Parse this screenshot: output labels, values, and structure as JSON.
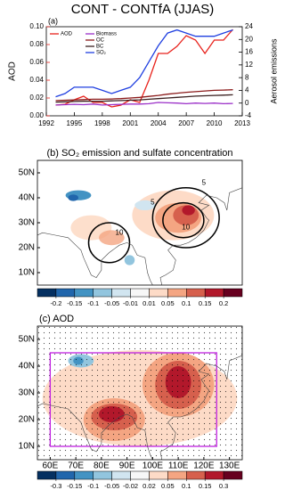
{
  "chart_data": [
    {
      "type": "line",
      "title": "CONT - CONTfA (JJAS)",
      "subtitle": "(a)",
      "ylabel": "AOD",
      "y2label": "Aerosol emissions",
      "x": [
        1993,
        1994,
        1995,
        1996,
        1997,
        1998,
        1999,
        2000,
        2001,
        2002,
        2003,
        2004,
        2005,
        2006,
        2007,
        2008,
        2009,
        2010,
        2011,
        2012
      ],
      "xlim": [
        1992,
        2013
      ],
      "xticks": [
        1992,
        1995,
        1998,
        2001,
        2004,
        2007,
        2010,
        2013
      ],
      "ylim": [
        0,
        0.1
      ],
      "yticks": [
        {
          "value": 0,
          "label": "0.00"
        },
        {
          "value": 0.02,
          "label": "0.02"
        },
        {
          "value": 0.04,
          "label": "0.04"
        },
        {
          "value": 0.06,
          "label": "0.06"
        },
        {
          "value": 0.08,
          "label": "0.08"
        },
        {
          "value": 0.1,
          "label": "0.10"
        }
      ],
      "y2lim": [
        -4,
        24
      ],
      "y2ticks": [
        -4,
        0,
        4,
        8,
        12,
        16,
        20,
        24
      ],
      "series": [
        {
          "name": "AOD",
          "color": "#e8221c",
          "values": [
            0.012,
            0.013,
            0.018,
            0.022,
            0.015,
            0.015,
            0.01,
            0.012,
            0.018,
            0.015,
            0.04,
            0.07,
            0.07,
            0.078,
            0.09,
            0.085,
            0.07,
            0.085,
            0.085,
            0.097
          ]
        },
        {
          "name": "Biomass",
          "color": "#9b30c8",
          "axis": "y2",
          "values": [
            -0.6,
            -0.5,
            -0.4,
            -0.5,
            -0.3,
            -0.6,
            -0.5,
            -0.4,
            -0.3,
            -0.3,
            -0.2,
            0.2,
            0.1,
            0.0,
            -0.2,
            0.0,
            -0.1,
            0.0,
            -0.2,
            -0.1
          ]
        },
        {
          "name": "OC",
          "color": "#8b1a1a",
          "axis": "y2",
          "values": [
            0.8,
            0.9,
            1.0,
            1.1,
            1.2,
            1.2,
            1.3,
            1.4,
            1.6,
            1.8,
            2.1,
            2.4,
            2.8,
            3.1,
            3.4,
            3.6,
            3.8,
            4.0,
            4.1,
            4.2
          ]
        },
        {
          "name": "BC",
          "color": "#3a1f1f",
          "axis": "y2",
          "values": [
            0.3,
            0.4,
            0.5,
            0.6,
            0.6,
            0.6,
            0.7,
            0.8,
            0.9,
            1.0,
            1.2,
            1.4,
            1.6,
            1.8,
            2.0,
            2.2,
            2.3,
            2.4,
            2.5,
            2.6
          ]
        },
        {
          "name": "SO₂",
          "color": "#1f3fe0",
          "axis": "y2",
          "values": [
            2,
            3,
            5,
            5,
            5,
            4,
            3,
            4,
            5,
            8,
            13,
            18,
            22,
            23,
            22,
            21,
            21,
            21,
            22,
            23
          ]
        }
      ]
    },
    {
      "type": "map",
      "title": "(b) SO₂ emission and sulfate concentration",
      "xlim": [
        55,
        135
      ],
      "ylim": [
        5,
        55
      ],
      "yticks": [
        {
          "value": 10,
          "label": "10N"
        },
        {
          "value": 20,
          "label": "20N"
        },
        {
          "value": 30,
          "label": "30N"
        },
        {
          "value": 40,
          "label": "40N"
        },
        {
          "value": 50,
          "label": "50N"
        }
      ],
      "annotations": [
        "5",
        "5",
        "10",
        "10"
      ]
    },
    {
      "type": "colorbar",
      "ticks": [
        -0.2,
        -0.15,
        -0.1,
        -0.05,
        -0.01,
        0.01,
        0.05,
        0.1,
        0.15,
        0.2
      ],
      "colors": [
        "#053061",
        "#2166ac",
        "#4393c3",
        "#92c5de",
        "#d1e5f0",
        "#f7f7f7",
        "#fddbc7",
        "#f4a582",
        "#d6604d",
        "#b2182b",
        "#67001f"
      ]
    },
    {
      "type": "map",
      "title": "(c) AOD",
      "xlim": [
        55,
        135
      ],
      "ylim": [
        5,
        55
      ],
      "xticks": [
        {
          "value": 60,
          "label": "60E"
        },
        {
          "value": 70,
          "label": "70E"
        },
        {
          "value": 80,
          "label": "80E"
        },
        {
          "value": 90,
          "label": "90E"
        },
        {
          "value": 100,
          "label": "100E"
        },
        {
          "value": 110,
          "label": "110E"
        },
        {
          "value": 120,
          "label": "120E"
        },
        {
          "value": 130,
          "label": "130E"
        }
      ],
      "yticks": [
        {
          "value": 10,
          "label": "10N"
        },
        {
          "value": 20,
          "label": "20N"
        },
        {
          "value": 30,
          "label": "30N"
        },
        {
          "value": 40,
          "label": "40N"
        },
        {
          "value": 50,
          "label": "50N"
        }
      ]
    },
    {
      "type": "colorbar",
      "ticks": [
        -0.3,
        -0.15,
        -0.1,
        -0.05,
        -0.02,
        0.02,
        0.05,
        0.1,
        0.15,
        0.3
      ],
      "colors": [
        "#053061",
        "#2166ac",
        "#4393c3",
        "#92c5de",
        "#d1e5f0",
        "#f7f7f7",
        "#fddbc7",
        "#f4a582",
        "#d6604d",
        "#b2182b",
        "#67001f"
      ]
    }
  ]
}
